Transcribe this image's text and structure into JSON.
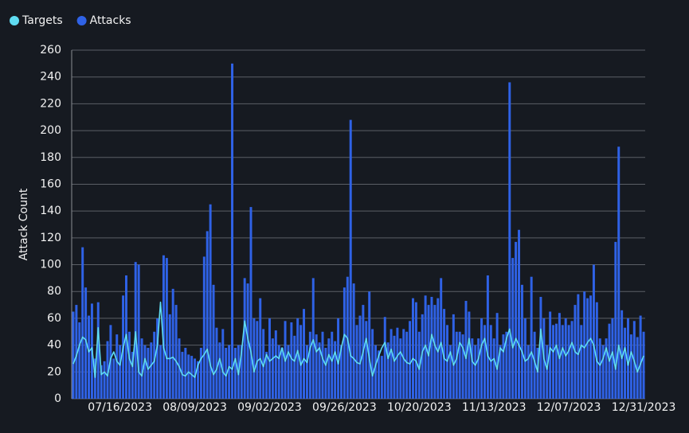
{
  "chart_data": {
    "type": "bar",
    "y_label": "Attack Count",
    "categories": [
      null,
      null,
      null,
      null,
      null,
      null,
      null,
      null,
      null,
      null,
      null,
      null,
      null,
      null,
      null,
      "07/16/2023",
      null,
      null,
      null,
      null,
      null,
      null,
      null,
      null,
      null,
      null,
      null,
      null,
      null,
      null,
      null,
      null,
      null,
      null,
      null,
      null,
      null,
      null,
      null,
      "08/09/2023",
      null,
      null,
      null,
      null,
      null,
      null,
      null,
      null,
      null,
      null,
      null,
      null,
      null,
      null,
      null,
      null,
      null,
      null,
      null,
      null,
      null,
      null,
      null,
      "09/02/2023",
      null,
      null,
      null,
      null,
      null,
      null,
      null,
      null,
      null,
      null,
      null,
      null,
      null,
      null,
      null,
      null,
      null,
      null,
      null,
      null,
      null,
      null,
      null,
      "09/26/2023",
      null,
      null,
      null,
      null,
      null,
      null,
      null,
      null,
      null,
      null,
      null,
      null,
      null,
      null,
      null,
      null,
      null,
      null,
      null,
      null,
      null,
      null,
      null,
      "10/20/2023",
      null,
      null,
      null,
      null,
      null,
      null,
      null,
      null,
      null,
      null,
      null,
      null,
      null,
      null,
      null,
      null,
      null,
      null,
      null,
      null,
      null,
      null,
      null,
      "11/13/2023",
      null,
      null,
      null,
      null,
      null,
      null,
      null,
      null,
      null,
      null,
      null,
      null,
      null,
      null,
      null,
      null,
      null,
      null,
      null,
      null,
      null,
      null,
      null,
      "12/07/2023",
      null,
      null,
      null,
      null,
      null,
      null,
      null,
      null,
      null,
      null,
      null,
      null,
      null,
      null,
      null,
      null,
      null,
      null,
      null,
      null,
      null,
      null,
      null,
      "12/31/2023"
    ],
    "series": [
      {
        "name": "Targets",
        "type": "line",
        "color": "#5fdcf2",
        "values": [
          26,
          32,
          40,
          46,
          44,
          35,
          38,
          16,
          53,
          18,
          20,
          17,
          30,
          35,
          28,
          25,
          38,
          48,
          30,
          24,
          50,
          20,
          17,
          30,
          22,
          25,
          28,
          40,
          72,
          38,
          30,
          30,
          31,
          28,
          24,
          18,
          17,
          20,
          18,
          16,
          25,
          30,
          33,
          37,
          25,
          18,
          22,
          30,
          20,
          17,
          24,
          22,
          30,
          18,
          35,
          58,
          45,
          35,
          20,
          28,
          30,
          24,
          33,
          28,
          30,
          32,
          30,
          38,
          28,
          35,
          30,
          28,
          36,
          25,
          30,
          27,
          38,
          44,
          35,
          38,
          30,
          25,
          33,
          28,
          35,
          26,
          38,
          48,
          45,
          32,
          30,
          27,
          26,
          35,
          45,
          30,
          17,
          25,
          32,
          38,
          42,
          30,
          37,
          28,
          32,
          35,
          30,
          27,
          26,
          30,
          28,
          22,
          35,
          40,
          32,
          48,
          40,
          35,
          42,
          30,
          28,
          35,
          25,
          30,
          42,
          38,
          30,
          45,
          28,
          25,
          30,
          40,
          45,
          32,
          28,
          30,
          22,
          38,
          35,
          45,
          52,
          38,
          45,
          40,
          35,
          28,
          30,
          35,
          28,
          20,
          52,
          30,
          22,
          38,
          35,
          40,
          30,
          38,
          32,
          36,
          42,
          35,
          33,
          40,
          38,
          42,
          45,
          40,
          28,
          25,
          30,
          38,
          28,
          35,
          22,
          40,
          30,
          38,
          25,
          35,
          28,
          20,
          26,
          32
        ]
      },
      {
        "name": "Attacks",
        "type": "bar",
        "color": "#2f62e6",
        "values": [
          65,
          70,
          57,
          113,
          83,
          62,
          71,
          30,
          72,
          25,
          28,
          43,
          55,
          30,
          48,
          40,
          77,
          92,
          50,
          35,
          102,
          100,
          45,
          40,
          38,
          42,
          50,
          60,
          40,
          107,
          105,
          63,
          82,
          70,
          45,
          35,
          38,
          33,
          32,
          30,
          28,
          38,
          106,
          125,
          145,
          85,
          53,
          42,
          52,
          38,
          40,
          250,
          38,
          40,
          40,
          90,
          86,
          143,
          60,
          58,
          75,
          52,
          35,
          60,
          45,
          51,
          40,
          38,
          58,
          40,
          57,
          47,
          60,
          55,
          67,
          40,
          50,
          90,
          48,
          42,
          50,
          38,
          45,
          50,
          43,
          60,
          40,
          83,
          91,
          208,
          86,
          55,
          62,
          70,
          58,
          80,
          52,
          40,
          36,
          32,
          61,
          42,
          52,
          47,
          53,
          45,
          52,
          50,
          58,
          75,
          72,
          50,
          63,
          77,
          70,
          76,
          70,
          75,
          90,
          67,
          55,
          40,
          63,
          50,
          50,
          48,
          73,
          65,
          45,
          40,
          45,
          60,
          55,
          92,
          55,
          45,
          64,
          40,
          48,
          50,
          236,
          105,
          117,
          126,
          85,
          60,
          40,
          91,
          50,
          38,
          76,
          60,
          40,
          65,
          55,
          56,
          64,
          55,
          60,
          55,
          58,
          70,
          78,
          55,
          80,
          75,
          77,
          100,
          72,
          45,
          40,
          45,
          56,
          60,
          117,
          188,
          66,
          53,
          60,
          48,
          58,
          46,
          62,
          50
        ]
      }
    ],
    "ylim": [
      0,
      260
    ],
    "yticks": [
      0,
      20,
      40,
      60,
      80,
      100,
      120,
      140,
      160,
      180,
      200,
      220,
      240,
      260
    ],
    "grid": true
  }
}
